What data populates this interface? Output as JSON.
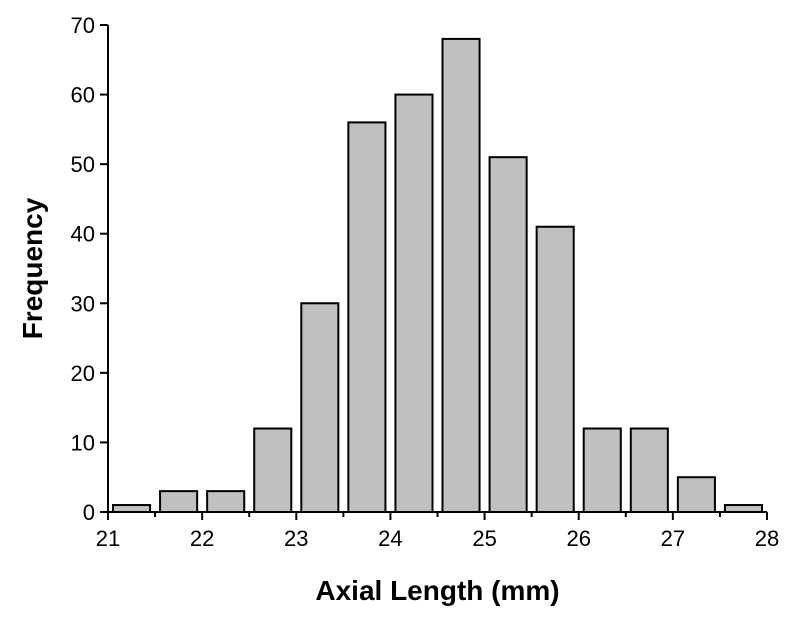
{
  "chart_data": {
    "type": "bar",
    "title": "",
    "xlabel": "Axial Length (mm)",
    "ylabel": "Frequency",
    "xlim": [
      21,
      28
    ],
    "ylim": [
      0,
      70
    ],
    "x_ticks": [
      "21",
      "22",
      "23",
      "24",
      "25",
      "26",
      "27",
      "28"
    ],
    "y_ticks": [
      "0",
      "10",
      "20",
      "30",
      "40",
      "50",
      "60",
      "70"
    ],
    "bin_width": 0.5,
    "bins": [
      {
        "x_start": 21.0,
        "value": 1
      },
      {
        "x_start": 21.5,
        "value": 3
      },
      {
        "x_start": 22.0,
        "value": 3
      },
      {
        "x_start": 22.5,
        "value": 12
      },
      {
        "x_start": 23.0,
        "value": 30
      },
      {
        "x_start": 23.5,
        "value": 56
      },
      {
        "x_start": 24.0,
        "value": 60
      },
      {
        "x_start": 24.5,
        "value": 68
      },
      {
        "x_start": 25.0,
        "value": 51
      },
      {
        "x_start": 25.5,
        "value": 41
      },
      {
        "x_start": 26.0,
        "value": 12
      },
      {
        "x_start": 26.5,
        "value": 12
      },
      {
        "x_start": 27.0,
        "value": 5
      },
      {
        "x_start": 27.5,
        "value": 1
      }
    ],
    "bar_color": "#c0c0c0",
    "bar_edge_color": "#000000",
    "grid": false,
    "legend": "none"
  }
}
